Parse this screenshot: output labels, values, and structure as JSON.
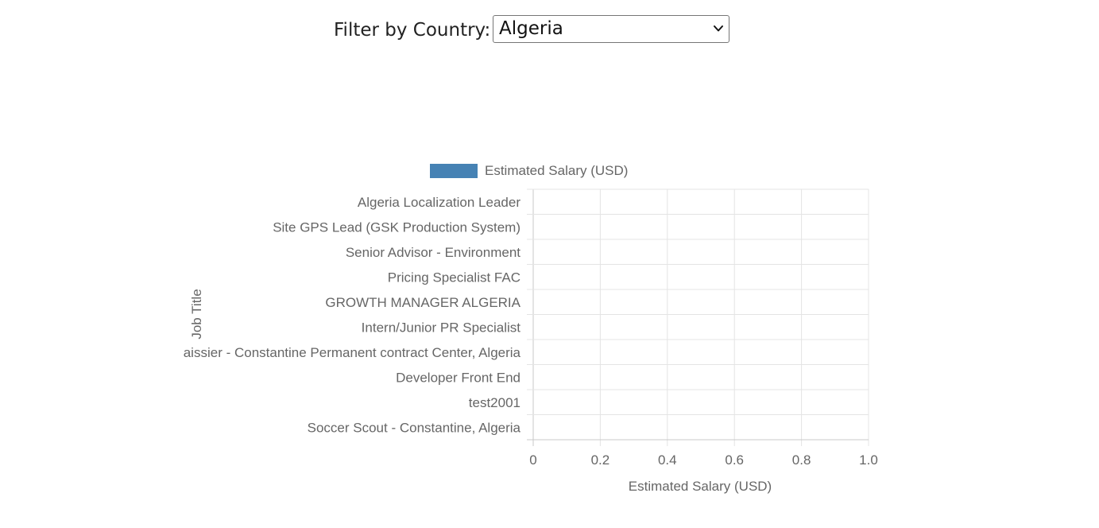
{
  "filter": {
    "label": "Filter by Country:",
    "selected": "Algeria",
    "chevron_icon": "chevron-down-icon"
  },
  "chart_data": {
    "type": "bar",
    "orientation": "horizontal",
    "legend": {
      "label": "Estimated Salary (USD)",
      "color": "#4682b4",
      "position": "top"
    },
    "categories": [
      "Algeria Localization Leader",
      "Site GPS Lead (GSK Production System)",
      "Senior Advisor - Environment",
      "Pricing Specialist FAC",
      "GROWTH MANAGER ALGERIA",
      "Intern/Junior PR Specialist",
      "Caissier - Constantine Permanent contract Center, Algeria",
      "Developer Front End",
      "test2001",
      "Soccer Scout - Constantine, Algeria"
    ],
    "series": [
      {
        "name": "Estimated Salary (USD)",
        "values": [
          0,
          0,
          0,
          0,
          0,
          0,
          0,
          0,
          0,
          0
        ]
      }
    ],
    "xlabel": "Estimated Salary (USD)",
    "ylabel": "Job Title",
    "xlim": [
      0,
      1.0
    ],
    "xticks": [
      "0",
      "0.2",
      "0.4",
      "0.6",
      "0.8",
      "1.0"
    ],
    "grid": true
  }
}
